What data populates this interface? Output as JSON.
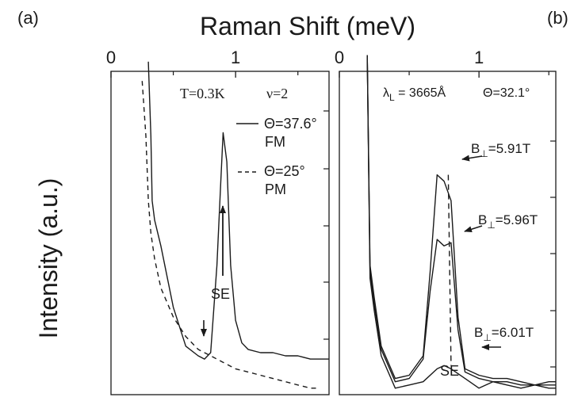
{
  "figure": {
    "panel_a_label": "(a)",
    "panel_b_label": "(b)",
    "xlabel": "Raman Shift (meV)",
    "ylabel": "Intensity (a.u.)"
  },
  "chart_data": [
    {
      "type": "line",
      "panel": "(a)",
      "xlabel": "Raman Shift (meV)",
      "ylabel": "Intensity (a.u.)",
      "xlim": [
        0,
        1.75
      ],
      "ylim": [
        0,
        1
      ],
      "x_ticks": [
        "0",
        "1"
      ],
      "grid": false,
      "annotations": {
        "temperature": "T=0.3K",
        "filling": "ν=2",
        "peak_label": "SE"
      },
      "legend": {
        "position": "top-right",
        "entries": [
          {
            "line": "Θ=37.6°",
            "sub": "FM",
            "style": "solid"
          },
          {
            "line": "Θ=25°",
            "sub": "PM",
            "style": "dashed"
          }
        ]
      },
      "series": [
        {
          "name": "Θ=37.6° FM",
          "style": "solid",
          "x": [
            0.3,
            0.32,
            0.33,
            0.35,
            0.4,
            0.5,
            0.6,
            0.7,
            0.75,
            0.8,
            0.85,
            0.88,
            0.9,
            0.93,
            0.96,
            1.0,
            1.05,
            1.1,
            1.2,
            1.3,
            1.4,
            1.5,
            1.6,
            1.7,
            1.75
          ],
          "y": [
            1.03,
            0.8,
            0.6,
            0.54,
            0.46,
            0.27,
            0.15,
            0.12,
            0.11,
            0.13,
            0.4,
            0.65,
            0.81,
            0.72,
            0.4,
            0.23,
            0.16,
            0.14,
            0.13,
            0.13,
            0.12,
            0.12,
            0.11,
            0.11,
            0.11
          ]
        },
        {
          "name": "Θ=25° PM",
          "style": "dashed",
          "x": [
            0.25,
            0.28,
            0.3,
            0.32,
            0.35,
            0.4,
            0.5,
            0.6,
            0.7,
            0.8,
            0.9,
            1.0,
            1.1,
            1.2,
            1.3,
            1.4,
            1.5,
            1.6,
            1.65
          ],
          "y": [
            0.97,
            0.8,
            0.6,
            0.5,
            0.42,
            0.33,
            0.24,
            0.18,
            0.14,
            0.12,
            0.1,
            0.08,
            0.07,
            0.06,
            0.05,
            0.04,
            0.03,
            0.02,
            0.02
          ]
        }
      ]
    },
    {
      "type": "line",
      "panel": "(b)",
      "xlabel": "Raman Shift (meV)",
      "ylabel": "Intensity (a.u.)",
      "xlim": [
        0,
        1.55
      ],
      "ylim": [
        0,
        1
      ],
      "x_ticks": [
        "0",
        "1"
      ],
      "grid": false,
      "annotations": {
        "laser": "λL = 3665Å",
        "angle": "Θ=32.1°",
        "peak_label": "SE"
      },
      "series": [
        {
          "name": "B⊥=5.91T",
          "style": "solid",
          "x": [
            0.2,
            0.22,
            0.25,
            0.3,
            0.4,
            0.5,
            0.6,
            0.65,
            0.7,
            0.75,
            0.8,
            0.85,
            0.9,
            1.0,
            1.1,
            1.2,
            1.3,
            1.4,
            1.5,
            1.55
          ],
          "y": [
            1.05,
            0.4,
            0.3,
            0.15,
            0.05,
            0.06,
            0.12,
            0.38,
            0.68,
            0.66,
            0.6,
            0.24,
            0.08,
            0.06,
            0.05,
            0.05,
            0.04,
            0.03,
            0.04,
            0.04
          ]
        },
        {
          "name": "B⊥=5.96T",
          "style": "solid",
          "x": [
            0.2,
            0.22,
            0.25,
            0.3,
            0.4,
            0.5,
            0.6,
            0.65,
            0.7,
            0.75,
            0.8,
            0.85,
            0.9,
            1.0,
            1.1,
            1.2,
            1.3,
            1.4,
            1.5,
            1.55
          ],
          "y": [
            1.05,
            0.38,
            0.28,
            0.14,
            0.04,
            0.05,
            0.11,
            0.32,
            0.48,
            0.46,
            0.47,
            0.2,
            0.07,
            0.05,
            0.04,
            0.04,
            0.03,
            0.03,
            0.03,
            0.03
          ]
        },
        {
          "name": "B⊥=6.01T",
          "style": "solid",
          "x": [
            0.2,
            0.22,
            0.25,
            0.3,
            0.4,
            0.5,
            0.6,
            0.7,
            0.75,
            0.8,
            0.9,
            1.0,
            1.1,
            1.2,
            1.3,
            1.4,
            1.5,
            1.55
          ],
          "y": [
            1.05,
            0.36,
            0.26,
            0.12,
            0.02,
            0.03,
            0.04,
            0.08,
            0.09,
            0.08,
            0.05,
            0.02,
            0.04,
            0.03,
            0.02,
            0.03,
            0.02,
            0.02
          ]
        }
      ],
      "peak_guide": {
        "style": "dashed",
        "x": [
          0.78,
          0.8
        ],
        "y": [
          0.68,
          0.09
        ]
      },
      "arrow_labels": [
        "B⊥=5.91T",
        "B⊥=5.96T",
        "B⊥=6.01T"
      ]
    }
  ]
}
